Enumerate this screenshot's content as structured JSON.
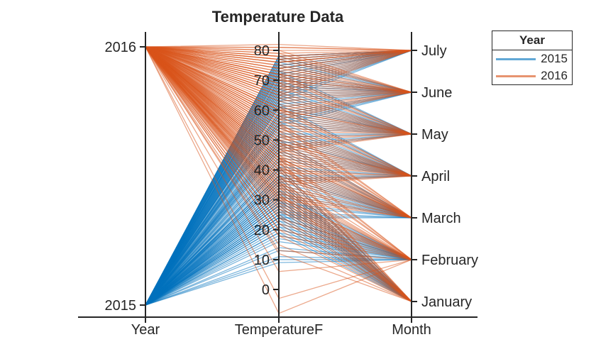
{
  "title": "Temperature Data",
  "legend": {
    "title": "Year",
    "items": [
      {
        "label": "2015",
        "color": "#0072BD"
      },
      {
        "label": "2016",
        "color": "#D95319"
      }
    ]
  },
  "axes": [
    {
      "name": "Year",
      "type": "categorical",
      "categories_bottom_to_top": [
        "2015",
        "2016"
      ]
    },
    {
      "name": "TemperatureF",
      "type": "numeric",
      "ticks": [
        0,
        10,
        20,
        30,
        40,
        50,
        60,
        70,
        80
      ]
    },
    {
      "name": "Month",
      "type": "categorical",
      "categories_bottom_to_top": [
        "January",
        "February",
        "March",
        "April",
        "May",
        "June",
        "July"
      ]
    }
  ],
  "chart_data": {
    "type": "parallel-coordinates",
    "title": "Temperature Data",
    "coordinates": [
      "Year",
      "TemperatureF",
      "Month"
    ],
    "coordinate_types": [
      "categorical",
      "numeric",
      "categorical"
    ],
    "group_by": "Year",
    "legend_position": "outside-top-right",
    "temperature_ticks": [
      0,
      10,
      20,
      30,
      40,
      50,
      60,
      70,
      80
    ],
    "temperature_range_approx": [
      -8,
      82
    ],
    "month_categories_bottom_to_top": [
      "January",
      "February",
      "March",
      "April",
      "May",
      "June",
      "July"
    ],
    "year_categories_bottom_to_top": [
      "2015",
      "2016"
    ],
    "values_estimated_from_dense_lines": true,
    "line_opacity": 0.5,
    "series": [
      {
        "name": "2015",
        "color": "#0072BD",
        "temps_by_month": {
          "January": [
            33,
            28,
            36,
            24,
            31,
            38,
            22,
            27,
            35,
            30,
            41,
            19,
            26,
            34,
            29,
            37,
            23,
            32,
            40,
            25,
            30,
            36,
            21,
            28
          ],
          "February": [
            26,
            18,
            29,
            14,
            22,
            31,
            11,
            20,
            27,
            24,
            33,
            9,
            17,
            25,
            21,
            30,
            13,
            23,
            32,
            16,
            24,
            28,
            10,
            19
          ],
          "March": [
            40,
            33,
            44,
            29,
            37,
            47,
            26,
            34,
            42,
            38,
            50,
            24,
            32,
            41,
            36,
            46,
            28,
            39,
            49,
            31,
            38,
            43,
            25,
            35
          ],
          "April": [
            52,
            45,
            56,
            41,
            49,
            59,
            38,
            46,
            54,
            50,
            62,
            36,
            44,
            53,
            48,
            58,
            40,
            51,
            61,
            43,
            50,
            55,
            37,
            47
          ],
          "May": [
            63,
            56,
            67,
            52,
            60,
            70,
            49,
            57,
            65,
            61,
            73,
            47,
            55,
            64,
            59,
            69,
            51,
            62,
            72,
            54,
            61,
            66,
            48,
            58
          ],
          "June": [
            70,
            63,
            73,
            59,
            67,
            76,
            57,
            64,
            71,
            68,
            78,
            55,
            62,
            70,
            66,
            75,
            58,
            69,
            77,
            61,
            68,
            72,
            56,
            65
          ],
          "July": [
            75,
            70,
            77,
            67,
            73,
            78,
            65,
            71,
            76,
            74,
            78,
            64,
            69,
            75,
            72,
            78,
            66,
            74,
            77,
            68,
            74,
            76,
            63,
            72
          ]
        }
      },
      {
        "name": "2016",
        "color": "#D95319",
        "temps_by_month": {
          "January": [
            34,
            27,
            38,
            22,
            31,
            41,
            18,
            28,
            36,
            32,
            44,
            15,
            25,
            35,
            30,
            40,
            20,
            33,
            43,
            24,
            32,
            37,
            12,
            29
          ],
          "February": [
            33,
            24,
            38,
            18,
            29,
            42,
            13,
            26,
            35,
            31,
            45,
            6,
            22,
            34,
            28,
            41,
            -3,
            30,
            44,
            20,
            31,
            36,
            -8,
            27
          ],
          "March": [
            46,
            39,
            50,
            35,
            43,
            53,
            32,
            40,
            48,
            44,
            56,
            30,
            38,
            47,
            42,
            52,
            34,
            45,
            55,
            37,
            44,
            49,
            31,
            41
          ],
          "April": [
            51,
            44,
            55,
            40,
            48,
            58,
            37,
            45,
            53,
            49,
            61,
            35,
            43,
            52,
            47,
            57,
            39,
            50,
            60,
            42,
            49,
            54,
            36,
            46
          ],
          "May": [
            62,
            55,
            66,
            51,
            59,
            69,
            48,
            56,
            64,
            60,
            72,
            46,
            54,
            63,
            58,
            68,
            50,
            61,
            71,
            53,
            60,
            65,
            47,
            57
          ],
          "June": [
            72,
            65,
            75,
            61,
            69,
            78,
            59,
            66,
            73,
            70,
            80,
            57,
            64,
            72,
            68,
            77,
            60,
            71,
            79,
            63,
            70,
            74,
            58,
            67
          ],
          "July": [
            77,
            72,
            79,
            69,
            75,
            81,
            67,
            73,
            78,
            76,
            82,
            66,
            71,
            77,
            74,
            80,
            68,
            76,
            81,
            70,
            76,
            78,
            65,
            74
          ]
        }
      }
    ]
  }
}
